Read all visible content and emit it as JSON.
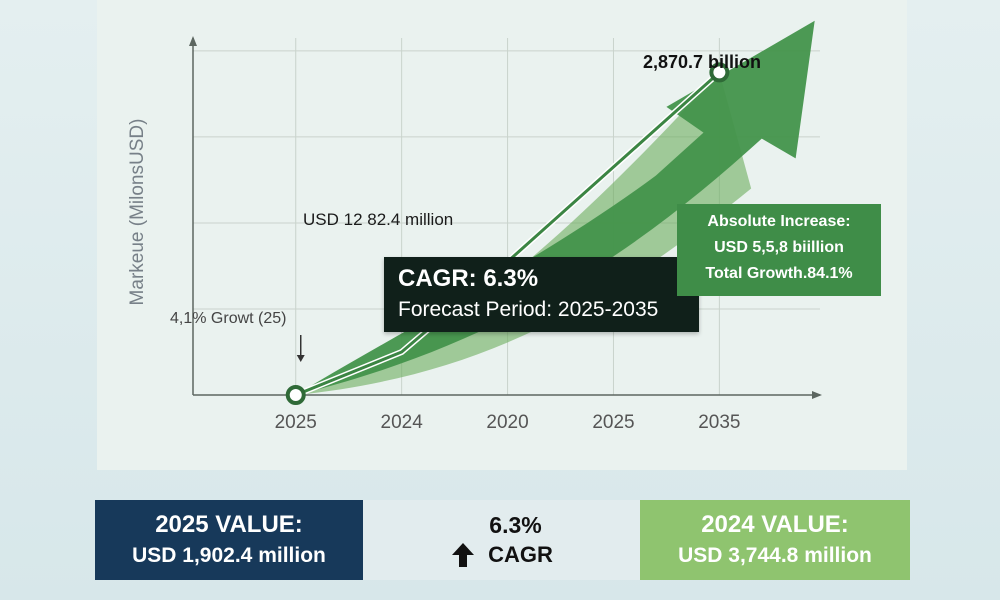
{
  "colors": {
    "area_green": "#6cae5e",
    "arrow_green": "#43944b",
    "line_green": "#3b8543",
    "grid": "#c9d3cc",
    "axis": "#5c6660",
    "dark_blue": "#17395a",
    "light_green": "#8fc46f"
  },
  "chart_data": {
    "type": "line",
    "ylabel": "Markeue (MilonsUSD)",
    "x_tick_labels": [
      "2025",
      "2024",
      "2020",
      "2025",
      "2035"
    ],
    "series": [
      {
        "points": [
          [
            0,
            0
          ],
          [
            1,
            0.5
          ],
          [
            2,
            1.55
          ],
          [
            3,
            2.65
          ],
          [
            4.0,
            3.75
          ]
        ]
      }
    ],
    "start_label": "4,1% Growt (25)",
    "mid_label": "USD 12 82.4 million",
    "end_label": "2,870.7 billion",
    "xlim": [
      -0.97,
      4.95
    ],
    "ylim": [
      0,
      4.15
    ],
    "grid": true,
    "cagr": {
      "title": "CAGR: 6.3%",
      "subtitle": "Forecast Period: 2025-2035"
    },
    "increase": {
      "line1": "Absolute Increase:",
      "line2": "USD 5,5,8 biillion",
      "line3": "Total Growth.84.1%"
    }
  },
  "cards": {
    "left": {
      "title": "2025 VALUE:",
      "value": "USD 1,902.4 million"
    },
    "mid": {
      "line1": "6.3%",
      "line2": "CAGR"
    },
    "right": {
      "title": "2024 VALUE:",
      "value": "USD 3,744.8 million"
    }
  }
}
